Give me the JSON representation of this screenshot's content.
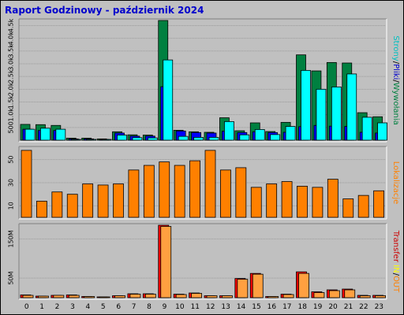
{
  "title": "Raport Godzinowy -  październik 2024",
  "side_labels": {
    "top": [
      {
        "text": "Strony",
        "color": "#00c0c0"
      },
      {
        "text": "/",
        "color": "#000000"
      },
      {
        "text": "Pliki",
        "color": "#0000cc"
      },
      {
        "text": "/",
        "color": "#000000"
      },
      {
        "text": "Wywołania",
        "color": "#008040"
      }
    ],
    "mid": [
      {
        "text": "Lokalizacje",
        "color": "#ff8000"
      }
    ],
    "bot": [
      {
        "text": "Transfer",
        "color": "#cc0000"
      },
      {
        "text": " IN",
        "color": "#ffff00"
      },
      {
        "text": "/",
        "color": "#000000"
      },
      {
        "text": "OUT",
        "color": "#ff8000"
      }
    ]
  },
  "colors": {
    "hits": "#008040",
    "files": "#0000ff",
    "pages": "#00ffff",
    "sites": "#ff8000",
    "trans_in": "#ff0000",
    "trans_out": "#ffa040",
    "panel_bg": "#c0c0c0",
    "grid": "#9a9a9a"
  },
  "chart_data": [
    {
      "type": "bar",
      "title": "",
      "ylabel": "Strony/Pliki/Wywołania",
      "categories": [
        "0",
        "1",
        "2",
        "3",
        "4",
        "5",
        "6",
        "7",
        "8",
        "9",
        "10",
        "11",
        "12",
        "13",
        "14",
        "15",
        "16",
        "17",
        "18",
        "19",
        "20",
        "21",
        "22",
        "23"
      ],
      "ylim": [
        0,
        4700
      ],
      "y_ticks": [
        500,
        1000,
        1500,
        2000,
        2500,
        3000,
        3500,
        4000,
        4500
      ],
      "y_tick_labels": [
        "500",
        "1.0k",
        "1.5k",
        "2.0k",
        "2.5k",
        "3.0k",
        "3.5k",
        "4.0k",
        "4.5k"
      ],
      "series": [
        {
          "name": "Wywołania",
          "values": [
            620,
            610,
            580,
            80,
            80,
            50,
            330,
            210,
            200,
            4700,
            390,
            330,
            310,
            880,
            370,
            680,
            340,
            700,
            3350,
            2720,
            3050,
            3030,
            1080,
            920
          ]
        },
        {
          "name": "Pliki",
          "values": [
            430,
            380,
            380,
            50,
            50,
            30,
            280,
            160,
            160,
            2100,
            360,
            300,
            280,
            350,
            300,
            330,
            300,
            310,
            530,
            580,
            550,
            540,
            310,
            280
          ]
        },
        {
          "name": "Strony",
          "values": [
            430,
            470,
            430,
            30,
            30,
            20,
            200,
            100,
            90,
            3150,
            150,
            110,
            110,
            730,
            210,
            420,
            220,
            540,
            2740,
            2000,
            2090,
            2600,
            900,
            680
          ]
        }
      ]
    },
    {
      "type": "bar",
      "title": "",
      "ylabel": "Lokalizacje",
      "categories": [
        "0",
        "1",
        "2",
        "3",
        "4",
        "5",
        "6",
        "7",
        "8",
        "9",
        "10",
        "11",
        "12",
        "13",
        "14",
        "15",
        "16",
        "17",
        "18",
        "19",
        "20",
        "21",
        "22",
        "23"
      ],
      "ylim": [
        0,
        60
      ],
      "y_ticks": [
        10,
        30,
        50
      ],
      "y_tick_labels": [
        "10",
        "30",
        "50"
      ],
      "series": [
        {
          "name": "Lokalizacje",
          "values": [
            58,
            14,
            22,
            20,
            29,
            28,
            29,
            41,
            45,
            48,
            45,
            49,
            58,
            41,
            43,
            26,
            29,
            31,
            27,
            26,
            33,
            16,
            19,
            23
          ]
        }
      ]
    },
    {
      "type": "bar",
      "title": "",
      "ylabel": "Transfer IN/OUT",
      "categories": [
        "0",
        "1",
        "2",
        "3",
        "4",
        "5",
        "6",
        "7",
        "8",
        "9",
        "10",
        "11",
        "12",
        "13",
        "14",
        "15",
        "16",
        "17",
        "18",
        "19",
        "20",
        "21",
        "22",
        "23"
      ],
      "ylim": [
        0,
        185
      ],
      "y_ticks": [
        50,
        150
      ],
      "y_tick_labels": [
        "50M",
        "150M"
      ],
      "series": [
        {
          "name": "IN",
          "values": [
            7,
            4,
            6,
            7,
            3,
            2,
            5,
            10,
            10,
            185,
            9,
            12,
            5,
            5,
            49,
            62,
            3,
            9,
            66,
            15,
            20,
            22,
            6,
            6
          ]
        },
        {
          "name": "OUT",
          "values": [
            6,
            4,
            6,
            6,
            3,
            2,
            5,
            9,
            9,
            182,
            8,
            11,
            5,
            5,
            47,
            60,
            3,
            8,
            62,
            13,
            18,
            20,
            5,
            5
          ]
        }
      ]
    }
  ]
}
